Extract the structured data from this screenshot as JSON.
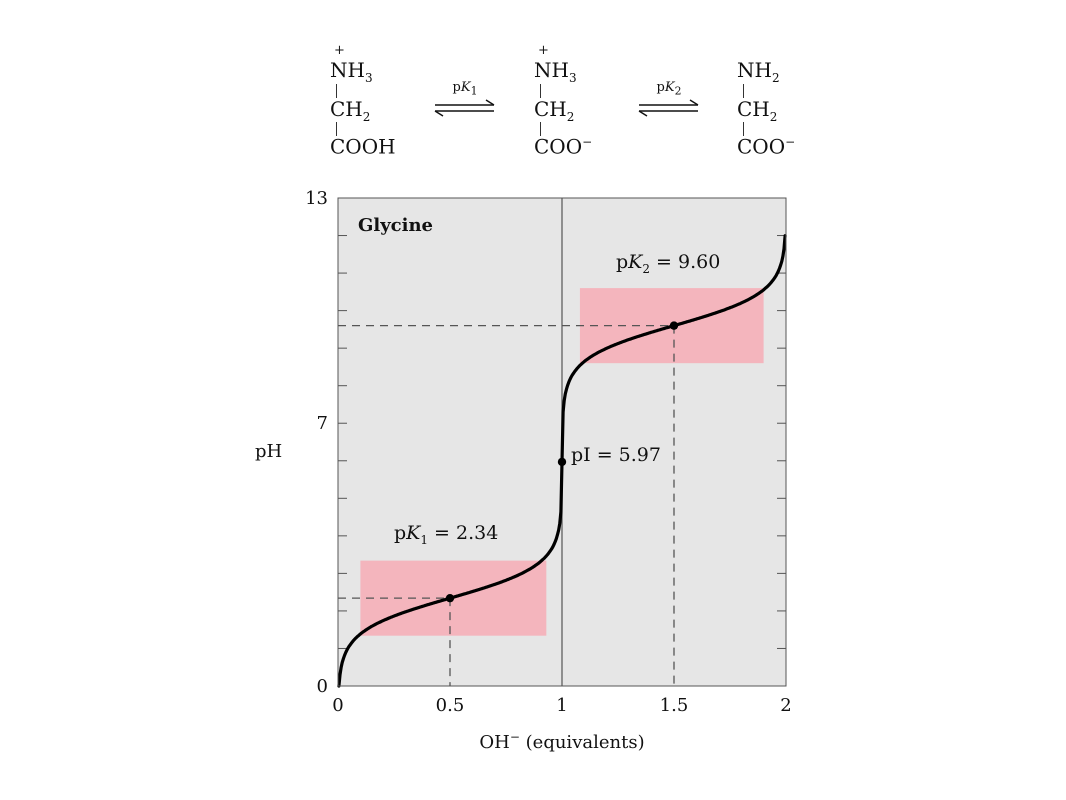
{
  "reaction": {
    "species": [
      {
        "charge": "+",
        "top_label": "NH",
        "top_sub": "3",
        "mid_label": "CH",
        "mid_sub": "2",
        "bottom_label": "COOH",
        "bottom_sup": ""
      },
      {
        "charge": "+",
        "top_label": "NH",
        "top_sub": "3",
        "mid_label": "CH",
        "mid_sub": "2",
        "bottom_label": "COO",
        "bottom_sup": "−"
      },
      {
        "charge": "",
        "top_label": "NH",
        "top_sub": "2",
        "mid_label": "CH",
        "mid_sub": "2",
        "bottom_label": "COO",
        "bottom_sup": "−"
      }
    ],
    "equilibria": [
      {
        "label_p": "p",
        "label_k": "K",
        "label_sub": "1"
      },
      {
        "label_p": "p",
        "label_k": "K",
        "label_sub": "2"
      }
    ]
  },
  "chart_data": {
    "type": "line",
    "title": "Glycine",
    "xlabel_main": "OH",
    "xlabel_sup": "−",
    "xlabel_rest": " (equivalents)",
    "ylabel": "pH",
    "xlim": [
      0,
      2
    ],
    "ylim": [
      0,
      13
    ],
    "x_ticks": [
      0,
      0.5,
      1,
      1.5,
      2
    ],
    "x_tick_labels": [
      "0",
      "0.5",
      "1",
      "1.5",
      "2"
    ],
    "y_ticks_labeled": [
      0,
      7,
      13
    ],
    "y_tick_labels": [
      "0",
      "7",
      "13"
    ],
    "y_minor_ticks": [
      1,
      2,
      3,
      4,
      5,
      6,
      8,
      9,
      10,
      11,
      12
    ],
    "pK1": 2.34,
    "pK2": 9.6,
    "pI": 5.97,
    "pK1_label": {
      "p": "p",
      "k": "K",
      "sub": "1",
      "eq": " = 2.34"
    },
    "pK2_label": {
      "p": "p",
      "k": "K",
      "sub": "2",
      "eq": " = 9.60"
    },
    "pI_label": "pI = 5.97",
    "buffer_regions": [
      {
        "x": [
          0.1,
          0.93
        ],
        "y": [
          1.34,
          3.34
        ]
      },
      {
        "x": [
          1.08,
          1.9
        ],
        "y": [
          8.6,
          10.6
        ]
      }
    ],
    "key_points": [
      {
        "x": 0.5,
        "y": 2.34
      },
      {
        "x": 1.0,
        "y": 5.97
      },
      {
        "x": 1.5,
        "y": 9.6
      }
    ],
    "colors": {
      "plot_background": "#e6e6e6",
      "buffer_region": "#f4b5bd",
      "curve": "#000000",
      "dashed_guides": "#555555",
      "equivalence_line": "#555555"
    },
    "grid": false
  }
}
